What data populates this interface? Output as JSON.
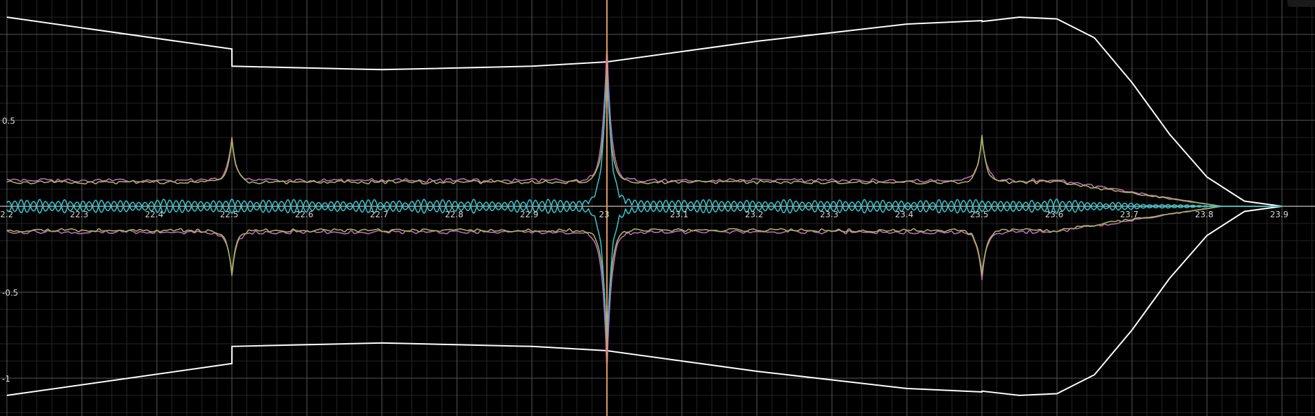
{
  "chart_data": {
    "type": "line",
    "title": "",
    "xlabel": "",
    "ylabel": "",
    "xlim": [
      22.2,
      23.9
    ],
    "ylim": [
      -1.2,
      1.2
    ],
    "grid": true,
    "x_ticks": [
      22.2,
      22.3,
      22.4,
      22.5,
      22.6,
      22.7,
      22.8,
      22.9,
      23,
      23.1,
      23.2,
      23.3,
      23.4,
      23.5,
      23.6,
      23.7,
      23.8,
      23.9
    ],
    "x_tick_labels": [
      "22.2",
      "22.3",
      "22.4",
      "22.5",
      "22.6",
      "22.7",
      "22.8",
      "22.9",
      "23",
      "23.1",
      "23.2",
      "23.3",
      "23.4",
      "23.5",
      "23.6",
      "23.7",
      "23.8",
      "23.9"
    ],
    "y_ticks": [
      0.5,
      -0.5,
      -1
    ],
    "y_tick_labels": [
      "0.5",
      "-0.5",
      "-1"
    ],
    "cursor_x": 23.0,
    "series": [
      {
        "color": "#ffffff",
        "role": "envelope",
        "x": [
          22.2,
          22.5,
          22.5001,
          22.7,
          22.9,
          23.0,
          23.2,
          23.4,
          23.5,
          23.5001,
          23.55,
          23.6,
          23.65,
          23.7,
          23.75,
          23.8,
          23.85,
          23.9
        ],
        "y": [
          1.1,
          0.915,
          0.815,
          0.795,
          0.815,
          0.84,
          0.96,
          1.06,
          1.08,
          1.075,
          1.1,
          1.09,
          0.98,
          0.72,
          0.42,
          0.17,
          0.03,
          0.0
        ]
      },
      {
        "color": "#c06cc0",
        "role": "residual",
        "amplitude": 0.15,
        "spike_x": [
          22.5,
          23.0,
          23.5
        ],
        "spike_amplitude": [
          0.25,
          0.8,
          0.27
        ]
      },
      {
        "color": "#a7b55b",
        "role": "residual",
        "amplitude": 0.14,
        "spike_x": [
          22.5,
          23.0,
          23.5
        ],
        "spike_amplitude": [
          0.25,
          0.65,
          0.27
        ]
      },
      {
        "color": "#38c0c8",
        "role": "residual",
        "amplitude": 0.03,
        "spike_x": [
          23.0
        ],
        "spike_amplitude": [
          0.83
        ]
      },
      {
        "color": "#e09a5e",
        "role": "cursor"
      }
    ]
  }
}
